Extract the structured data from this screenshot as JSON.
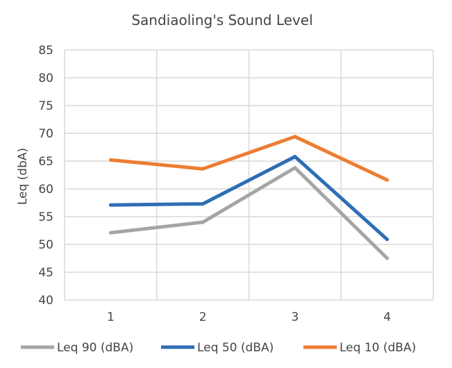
{
  "chart_data": {
    "type": "line",
    "title": "Sandiaoling's Sound Level",
    "xlabel": "",
    "ylabel": "Leq (dbA)",
    "categories": [
      "1",
      "2",
      "3",
      "4"
    ],
    "ylim": [
      40,
      85
    ],
    "yticks": [
      40,
      45,
      50,
      55,
      60,
      65,
      70,
      75,
      80,
      85
    ],
    "grid": true,
    "legend": "bottom",
    "series": [
      {
        "name": "Leq 90 (dBA)",
        "color": "#a5a5a5",
        "values": [
          52.1,
          54.0,
          63.8,
          47.5
        ]
      },
      {
        "name": "Leq 50 (dBA)",
        "color": "#2e6eb5",
        "values": [
          57.1,
          57.3,
          65.8,
          50.9
        ]
      },
      {
        "name": "Leq 10 (dBA)",
        "color": "#ed7d31",
        "values": [
          65.2,
          63.6,
          69.4,
          61.6
        ]
      }
    ]
  }
}
